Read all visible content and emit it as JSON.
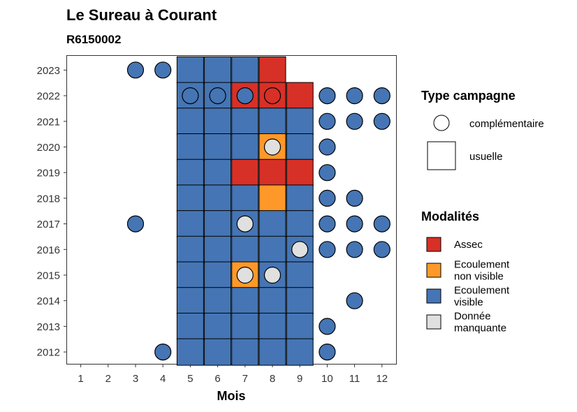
{
  "chart_data": {
    "type": "heatmap",
    "title": "Le Sureau à Courant",
    "subtitle": "R6150002",
    "xlabel": "Mois",
    "ylabel": "",
    "x_categories": [
      "1",
      "2",
      "3",
      "4",
      "5",
      "6",
      "7",
      "8",
      "9",
      "10",
      "11",
      "12"
    ],
    "y_categories": [
      "2012",
      "2013",
      "2014",
      "2015",
      "2016",
      "2017",
      "2018",
      "2019",
      "2020",
      "2021",
      "2022",
      "2023"
    ],
    "grid": false,
    "colors": {
      "Assec": "#d73027",
      "Ecoulement non visible": "#fe9929",
      "Ecoulement visible": "#4575b4",
      "Donnée manquante": "#e0e0e0"
    },
    "legend_campagne": {
      "title": "Type campagne",
      "entries": [
        {
          "label": "complémentaire",
          "shape": "circle"
        },
        {
          "label": "usuelle",
          "shape": "square"
        }
      ]
    },
    "legend_modalites": {
      "title": "Modalités",
      "entries": [
        {
          "key": "Assec",
          "lines": [
            "Assec"
          ]
        },
        {
          "key": "Ecoulement non visible",
          "lines": [
            "Ecoulement",
            "non visible"
          ]
        },
        {
          "key": "Ecoulement visible",
          "lines": [
            "Ecoulement",
            "visible"
          ]
        },
        {
          "key": "Donnée manquante",
          "lines": [
            "Donnée",
            "manquante"
          ]
        }
      ]
    },
    "squares": [
      {
        "year": "2023",
        "month": 5,
        "value": "Ecoulement visible"
      },
      {
        "year": "2023",
        "month": 6,
        "value": "Ecoulement visible"
      },
      {
        "year": "2023",
        "month": 7,
        "value": "Ecoulement visible"
      },
      {
        "year": "2023",
        "month": 8,
        "value": "Assec"
      },
      {
        "year": "2022",
        "month": 5,
        "value": "Ecoulement visible"
      },
      {
        "year": "2022",
        "month": 6,
        "value": "Ecoulement visible"
      },
      {
        "year": "2022",
        "month": 7,
        "value": "Assec"
      },
      {
        "year": "2022",
        "month": 8,
        "value": "Assec"
      },
      {
        "year": "2022",
        "month": 9,
        "value": "Assec"
      },
      {
        "year": "2021",
        "month": 5,
        "value": "Ecoulement visible"
      },
      {
        "year": "2021",
        "month": 6,
        "value": "Ecoulement visible"
      },
      {
        "year": "2021",
        "month": 7,
        "value": "Ecoulement visible"
      },
      {
        "year": "2021",
        "month": 8,
        "value": "Ecoulement visible"
      },
      {
        "year": "2021",
        "month": 9,
        "value": "Ecoulement visible"
      },
      {
        "year": "2020",
        "month": 5,
        "value": "Ecoulement visible"
      },
      {
        "year": "2020",
        "month": 6,
        "value": "Ecoulement visible"
      },
      {
        "year": "2020",
        "month": 7,
        "value": "Ecoulement visible"
      },
      {
        "year": "2020",
        "month": 8,
        "value": "Ecoulement non visible"
      },
      {
        "year": "2020",
        "month": 9,
        "value": "Ecoulement visible"
      },
      {
        "year": "2019",
        "month": 5,
        "value": "Ecoulement visible"
      },
      {
        "year": "2019",
        "month": 6,
        "value": "Ecoulement visible"
      },
      {
        "year": "2019",
        "month": 7,
        "value": "Assec"
      },
      {
        "year": "2019",
        "month": 8,
        "value": "Assec"
      },
      {
        "year": "2019",
        "month": 9,
        "value": "Assec"
      },
      {
        "year": "2018",
        "month": 5,
        "value": "Ecoulement visible"
      },
      {
        "year": "2018",
        "month": 6,
        "value": "Ecoulement visible"
      },
      {
        "year": "2018",
        "month": 7,
        "value": "Ecoulement visible"
      },
      {
        "year": "2018",
        "month": 8,
        "value": "Ecoulement non visible"
      },
      {
        "year": "2018",
        "month": 9,
        "value": "Ecoulement visible"
      },
      {
        "year": "2017",
        "month": 5,
        "value": "Ecoulement visible"
      },
      {
        "year": "2017",
        "month": 6,
        "value": "Ecoulement visible"
      },
      {
        "year": "2017",
        "month": 7,
        "value": "Ecoulement visible"
      },
      {
        "year": "2017",
        "month": 8,
        "value": "Ecoulement visible"
      },
      {
        "year": "2017",
        "month": 9,
        "value": "Ecoulement visible"
      },
      {
        "year": "2016",
        "month": 5,
        "value": "Ecoulement visible"
      },
      {
        "year": "2016",
        "month": 6,
        "value": "Ecoulement visible"
      },
      {
        "year": "2016",
        "month": 7,
        "value": "Ecoulement visible"
      },
      {
        "year": "2016",
        "month": 8,
        "value": "Ecoulement visible"
      },
      {
        "year": "2016",
        "month": 9,
        "value": "Ecoulement visible"
      },
      {
        "year": "2015",
        "month": 5,
        "value": "Ecoulement visible"
      },
      {
        "year": "2015",
        "month": 6,
        "value": "Ecoulement visible"
      },
      {
        "year": "2015",
        "month": 7,
        "value": "Ecoulement non visible"
      },
      {
        "year": "2015",
        "month": 8,
        "value": "Ecoulement visible"
      },
      {
        "year": "2015",
        "month": 9,
        "value": "Ecoulement visible"
      },
      {
        "year": "2014",
        "month": 5,
        "value": "Ecoulement visible"
      },
      {
        "year": "2014",
        "month": 6,
        "value": "Ecoulement visible"
      },
      {
        "year": "2014",
        "month": 7,
        "value": "Ecoulement visible"
      },
      {
        "year": "2014",
        "month": 8,
        "value": "Ecoulement visible"
      },
      {
        "year": "2014",
        "month": 9,
        "value": "Ecoulement visible"
      },
      {
        "year": "2013",
        "month": 5,
        "value": "Ecoulement visible"
      },
      {
        "year": "2013",
        "month": 6,
        "value": "Ecoulement visible"
      },
      {
        "year": "2013",
        "month": 7,
        "value": "Ecoulement visible"
      },
      {
        "year": "2013",
        "month": 8,
        "value": "Ecoulement visible"
      },
      {
        "year": "2013",
        "month": 9,
        "value": "Ecoulement visible"
      },
      {
        "year": "2012",
        "month": 5,
        "value": "Ecoulement visible"
      },
      {
        "year": "2012",
        "month": 6,
        "value": "Ecoulement visible"
      },
      {
        "year": "2012",
        "month": 7,
        "value": "Ecoulement visible"
      },
      {
        "year": "2012",
        "month": 8,
        "value": "Ecoulement visible"
      },
      {
        "year": "2012",
        "month": 9,
        "value": "Ecoulement visible"
      }
    ],
    "circles": [
      {
        "year": "2023",
        "month": 3,
        "value": "Ecoulement visible"
      },
      {
        "year": "2023",
        "month": 4,
        "value": "Ecoulement visible"
      },
      {
        "year": "2022",
        "month": 5,
        "value": "Ecoulement visible"
      },
      {
        "year": "2022",
        "month": 6,
        "value": "Ecoulement visible"
      },
      {
        "year": "2022",
        "month": 7,
        "value": "Ecoulement visible"
      },
      {
        "year": "2022",
        "month": 8,
        "value": "Assec"
      },
      {
        "year": "2022",
        "month": 10,
        "value": "Ecoulement visible"
      },
      {
        "year": "2022",
        "month": 11,
        "value": "Ecoulement visible"
      },
      {
        "year": "2022",
        "month": 12,
        "value": "Ecoulement visible"
      },
      {
        "year": "2021",
        "month": 10,
        "value": "Ecoulement visible"
      },
      {
        "year": "2021",
        "month": 11,
        "value": "Ecoulement visible"
      },
      {
        "year": "2021",
        "month": 12,
        "value": "Ecoulement visible"
      },
      {
        "year": "2020",
        "month": 8,
        "value": "Donnée manquante"
      },
      {
        "year": "2020",
        "month": 10,
        "value": "Ecoulement visible"
      },
      {
        "year": "2019",
        "month": 10,
        "value": "Ecoulement visible"
      },
      {
        "year": "2018",
        "month": 10,
        "value": "Ecoulement visible"
      },
      {
        "year": "2018",
        "month": 11,
        "value": "Ecoulement visible"
      },
      {
        "year": "2017",
        "month": 3,
        "value": "Ecoulement visible"
      },
      {
        "year": "2017",
        "month": 7,
        "value": "Donnée manquante"
      },
      {
        "year": "2017",
        "month": 10,
        "value": "Ecoulement visible"
      },
      {
        "year": "2017",
        "month": 11,
        "value": "Ecoulement visible"
      },
      {
        "year": "2017",
        "month": 12,
        "value": "Ecoulement visible"
      },
      {
        "year": "2016",
        "month": 9,
        "value": "Donnée manquante"
      },
      {
        "year": "2016",
        "month": 10,
        "value": "Ecoulement visible"
      },
      {
        "year": "2016",
        "month": 11,
        "value": "Ecoulement visible"
      },
      {
        "year": "2016",
        "month": 12,
        "value": "Ecoulement visible"
      },
      {
        "year": "2015",
        "month": 7,
        "value": "Donnée manquante"
      },
      {
        "year": "2015",
        "month": 8,
        "value": "Donnée manquante"
      },
      {
        "year": "2014",
        "month": 11,
        "value": "Ecoulement visible"
      },
      {
        "year": "2013",
        "month": 10,
        "value": "Ecoulement visible"
      },
      {
        "year": "2012",
        "month": 4,
        "value": "Ecoulement visible"
      },
      {
        "year": "2012",
        "month": 10,
        "value": "Ecoulement visible"
      }
    ]
  }
}
